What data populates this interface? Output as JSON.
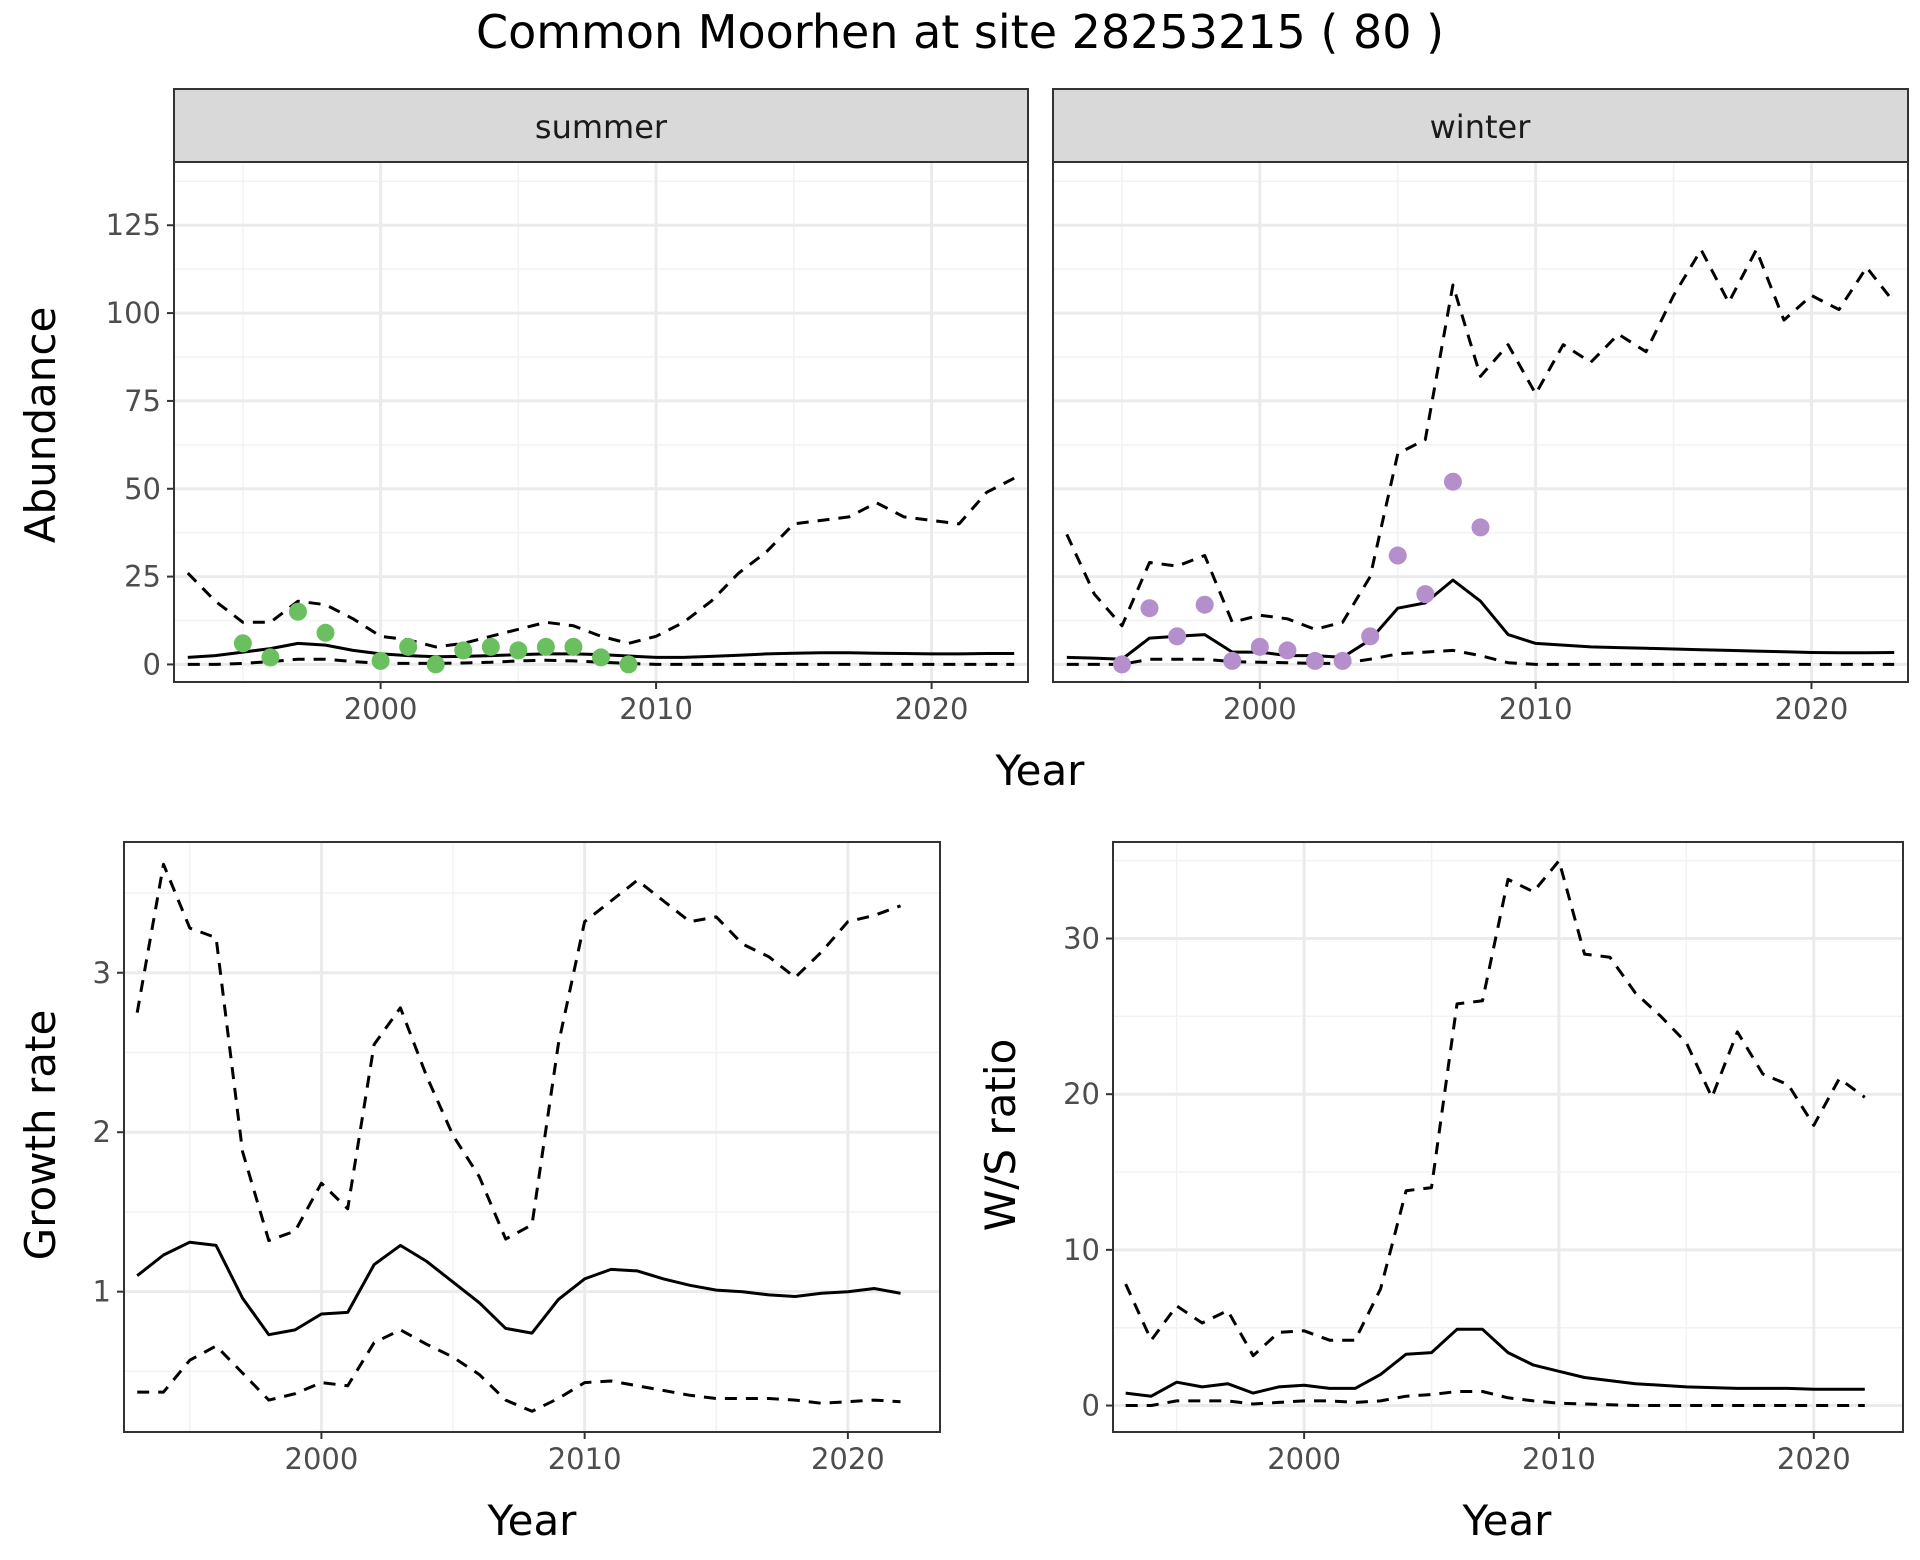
{
  "title": "Common Moorhen at site 28253215 ( 80 )",
  "colors": {
    "summer_points": "#6abf5e",
    "winter_points": "#b48fcc",
    "line": "#000000",
    "strip_fill": "#d9d9d9",
    "grid": "#ebebeb"
  },
  "chart_data": [
    {
      "type": "line",
      "facet": "summer",
      "xlabel": "Year",
      "ylabel": "Abundance",
      "xlim": [
        1992.5,
        2023.5
      ],
      "ylim": [
        -5,
        143
      ],
      "xticks": [
        2000,
        2010,
        2020
      ],
      "yticks": [
        0,
        25,
        50,
        75,
        100,
        125
      ],
      "grid": true,
      "x": [
        1993,
        1994,
        1995,
        1996,
        1997,
        1998,
        1999,
        2000,
        2001,
        2002,
        2003,
        2004,
        2005,
        2006,
        2007,
        2008,
        2009,
        2010,
        2011,
        2012,
        2013,
        2014,
        2015,
        2016,
        2017,
        2018,
        2019,
        2020,
        2021,
        2022,
        2023
      ],
      "series": [
        {
          "role": "estimate",
          "style": "solid",
          "values": [
            2,
            2.5,
            3.5,
            4.5,
            6,
            5.5,
            4,
            3,
            2.5,
            2.2,
            2.3,
            2.5,
            2.8,
            3,
            3,
            2.8,
            2.4,
            2,
            2,
            2.3,
            2.6,
            3,
            3.2,
            3.3,
            3.3,
            3.2,
            3.1,
            3,
            3,
            3.1,
            3.1
          ]
        },
        {
          "role": "upper",
          "style": "dashed",
          "values": [
            26,
            18,
            12,
            12,
            18,
            17,
            13,
            8,
            7,
            5,
            6,
            8,
            10,
            12,
            11,
            8,
            6,
            8,
            12,
            18,
            26,
            32,
            40,
            41,
            42,
            46,
            42,
            41,
            40,
            49,
            53
          ]
        },
        {
          "role": "lower",
          "style": "dashed",
          "values": [
            0,
            0,
            0.3,
            0.8,
            1.5,
            1.5,
            0.8,
            0.3,
            0.3,
            0.3,
            0.4,
            0.6,
            1,
            1.2,
            1,
            0.6,
            0.3,
            0,
            0,
            0,
            0,
            0,
            0,
            0,
            0,
            0,
            0,
            0,
            0,
            0,
            0
          ]
        },
        {
          "role": "observed",
          "style": "points",
          "x": [
            1995,
            1996,
            1997,
            1998,
            2000,
            2001,
            2002,
            2003,
            2004,
            2005,
            2006,
            2007,
            2008,
            2009
          ],
          "values": [
            6,
            2,
            15,
            9,
            1,
            5,
            0,
            4,
            5,
            4,
            5,
            5,
            2,
            0
          ]
        }
      ]
    },
    {
      "type": "line",
      "facet": "winter",
      "xlabel": "Year",
      "ylabel": "Abundance",
      "xlim": [
        1992.5,
        2023.5
      ],
      "ylim": [
        -5,
        143
      ],
      "xticks": [
        2000,
        2010,
        2020
      ],
      "yticks": [
        0,
        25,
        50,
        75,
        100,
        125
      ],
      "grid": true,
      "x": [
        1993,
        1994,
        1995,
        1996,
        1997,
        1998,
        1999,
        2000,
        2001,
        2002,
        2003,
        2004,
        2005,
        2006,
        2007,
        2008,
        2009,
        2010,
        2011,
        2012,
        2013,
        2014,
        2015,
        2016,
        2017,
        2018,
        2019,
        2020,
        2021,
        2022,
        2023
      ],
      "series": [
        {
          "role": "estimate",
          "style": "solid",
          "values": [
            2,
            1.8,
            1.5,
            7.5,
            8,
            8.5,
            3.5,
            3.5,
            2.5,
            2.5,
            2,
            7,
            16,
            17.5,
            24,
            18,
            8.5,
            6,
            5.5,
            5,
            4.8,
            4.6,
            4.4,
            4.2,
            4,
            3.8,
            3.6,
            3.4,
            3.3,
            3.3,
            3.4
          ]
        },
        {
          "role": "upper",
          "style": "dashed",
          "values": [
            37,
            20,
            11,
            29,
            28,
            31,
            12,
            14,
            13,
            10,
            12,
            25,
            60,
            64,
            108,
            82,
            91,
            77,
            91,
            86,
            94,
            89,
            105,
            118,
            103,
            118,
            98,
            105,
            101,
            113,
            103
          ]
        },
        {
          "role": "lower",
          "style": "dashed",
          "values": [
            0,
            0,
            0,
            1.5,
            1.5,
            1.5,
            0.8,
            0.6,
            0.5,
            0.3,
            0.3,
            1.5,
            3,
            3.5,
            4,
            2.5,
            0.5,
            0,
            0,
            0,
            0,
            0,
            0,
            0,
            0,
            0,
            0,
            0,
            0,
            0,
            0
          ]
        },
        {
          "role": "observed",
          "style": "points",
          "x": [
            1995,
            1996,
            1997,
            1998,
            1999,
            2000,
            2001,
            2002,
            2003,
            2004,
            2005,
            2006,
            2007,
            2008
          ],
          "values": [
            0,
            16,
            8,
            17,
            1,
            5,
            4,
            1,
            1,
            8,
            31,
            20,
            52,
            39
          ]
        }
      ]
    },
    {
      "type": "line",
      "xlabel": "Year",
      "ylabel": "Growth rate",
      "xlim": [
        1992.5,
        2023.5
      ],
      "ylim": [
        0.12,
        3.82
      ],
      "xticks": [
        2000,
        2010,
        2020
      ],
      "yticks": [
        1,
        2,
        3
      ],
      "grid": true,
      "x": [
        1993,
        1994,
        1995,
        1996,
        1997,
        1998,
        1999,
        2000,
        2001,
        2002,
        2003,
        2004,
        2005,
        2006,
        2007,
        2008,
        2009,
        2010,
        2011,
        2012,
        2013,
        2014,
        2015,
        2016,
        2017,
        2018,
        2019,
        2020,
        2021,
        2022
      ],
      "series": [
        {
          "role": "estimate",
          "style": "solid",
          "values": [
            1.1,
            1.23,
            1.31,
            1.29,
            0.96,
            0.73,
            0.76,
            0.86,
            0.87,
            1.17,
            1.29,
            1.19,
            1.06,
            0.93,
            0.77,
            0.74,
            0.95,
            1.08,
            1.14,
            1.13,
            1.08,
            1.04,
            1.01,
            1.0,
            0.98,
            0.97,
            0.99,
            1.0,
            1.02,
            0.99
          ]
        },
        {
          "role": "upper",
          "style": "dashed",
          "values": [
            2.75,
            3.68,
            3.28,
            3.22,
            1.88,
            1.32,
            1.38,
            1.68,
            1.52,
            2.55,
            2.78,
            2.35,
            1.98,
            1.72,
            1.33,
            1.42,
            2.55,
            3.32,
            3.45,
            3.58,
            3.45,
            3.32,
            3.35,
            3.18,
            3.1,
            2.97,
            3.13,
            3.32,
            3.36,
            3.42
          ]
        },
        {
          "role": "lower",
          "style": "dashed",
          "values": [
            0.37,
            0.37,
            0.57,
            0.66,
            0.49,
            0.32,
            0.36,
            0.43,
            0.41,
            0.68,
            0.76,
            0.67,
            0.59,
            0.48,
            0.32,
            0.25,
            0.33,
            0.43,
            0.44,
            0.41,
            0.38,
            0.35,
            0.33,
            0.33,
            0.33,
            0.32,
            0.3,
            0.31,
            0.32,
            0.31
          ]
        }
      ]
    },
    {
      "type": "line",
      "xlabel": "Year",
      "ylabel": "W/S ratio",
      "xlim": [
        1992.5,
        2023.5
      ],
      "ylim": [
        -1.7,
        36.2
      ],
      "xticks": [
        2000,
        2010,
        2020
      ],
      "yticks": [
        0,
        10,
        20,
        30
      ],
      "grid": true,
      "x": [
        1993,
        1994,
        1995,
        1996,
        1997,
        1998,
        1999,
        2000,
        2001,
        2002,
        2003,
        2004,
        2005,
        2006,
        2007,
        2008,
        2009,
        2010,
        2011,
        2012,
        2013,
        2014,
        2015,
        2016,
        2017,
        2018,
        2019,
        2020,
        2021,
        2022
      ],
      "series": [
        {
          "role": "estimate",
          "style": "solid",
          "values": [
            0.8,
            0.6,
            1.5,
            1.2,
            1.4,
            0.8,
            1.2,
            1.3,
            1.1,
            1.1,
            2.0,
            3.3,
            3.4,
            4.9,
            4.9,
            3.4,
            2.6,
            2.2,
            1.8,
            1.6,
            1.4,
            1.3,
            1.2,
            1.15,
            1.1,
            1.1,
            1.1,
            1.05,
            1.05,
            1.05
          ]
        },
        {
          "role": "upper",
          "style": "dashed",
          "values": [
            7.8,
            4.2,
            6.4,
            5.3,
            6.1,
            3.2,
            4.7,
            4.8,
            4.2,
            4.2,
            7.5,
            13.8,
            14.0,
            25.8,
            26.0,
            33.8,
            33.0,
            35.0,
            29.0,
            28.8,
            26.5,
            25.0,
            23.3,
            19.8,
            24.0,
            21.3,
            20.6,
            18.0,
            21.0,
            19.8
          ]
        },
        {
          "role": "lower",
          "style": "dashed",
          "values": [
            0,
            0,
            0.3,
            0.3,
            0.3,
            0.1,
            0.2,
            0.3,
            0.3,
            0.2,
            0.3,
            0.6,
            0.7,
            0.9,
            0.9,
            0.5,
            0.3,
            0.15,
            0.1,
            0.05,
            0,
            0,
            0,
            0,
            0,
            0,
            0,
            0,
            0,
            0
          ]
        }
      ]
    }
  ]
}
